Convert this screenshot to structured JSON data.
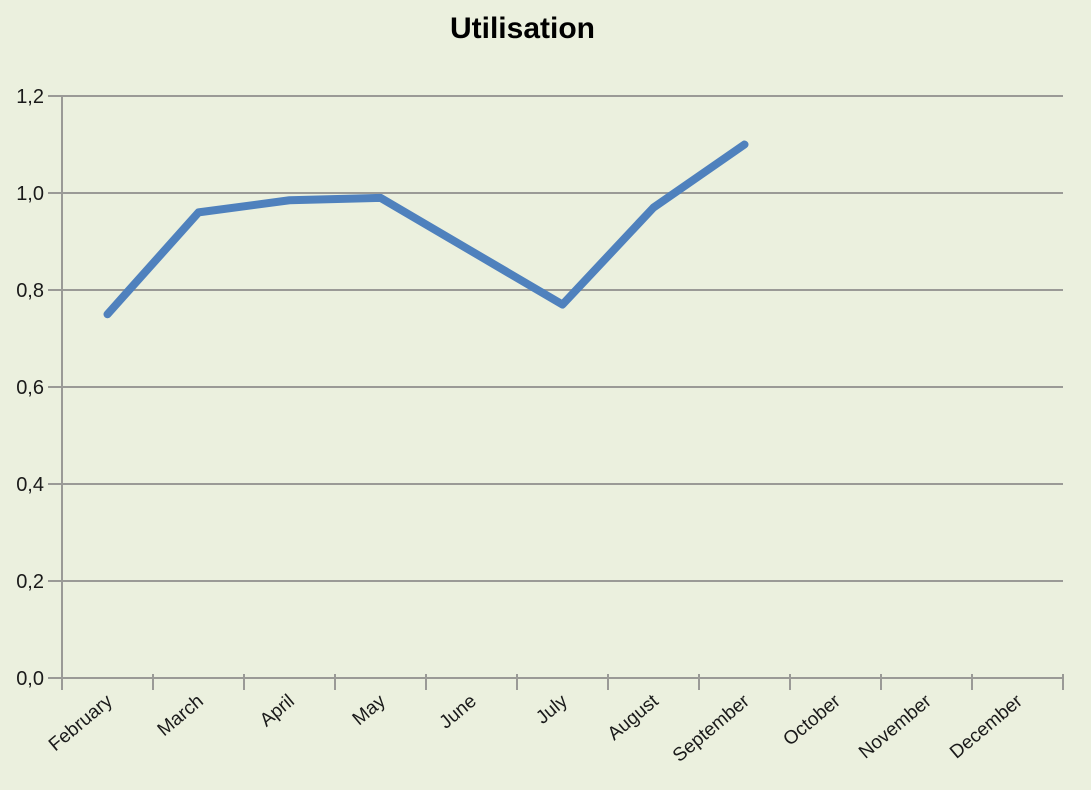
{
  "chart_data": {
    "type": "line",
    "title": "Utilisation",
    "categories": [
      "February",
      "March",
      "April",
      "May",
      "June",
      "July",
      "August",
      "September",
      "October",
      "November",
      "December"
    ],
    "series": [
      {
        "name": "Utilisation",
        "values": [
          0.75,
          0.96,
          0.985,
          0.99,
          0.88,
          0.77,
          0.97,
          1.1,
          null,
          null,
          null
        ]
      }
    ],
    "xlabel": "",
    "ylabel": "",
    "ylim": [
      0,
      1.2
    ],
    "y_tick_step": 0.2,
    "y_tick_labels": [
      "0,0",
      "0,2",
      "0,4",
      "0,6",
      "0,8",
      "1,0",
      "1,2"
    ],
    "grid": true,
    "legend_position": "none",
    "x_label_rotation_deg": -40,
    "colors": {
      "background": "#ebf0de",
      "series_line": "#4f81bd",
      "gridline": "#9a9a96",
      "axis": "#9a9a96",
      "title_text": "#1a1a1a",
      "tick_text": "#1a1a1a"
    }
  }
}
